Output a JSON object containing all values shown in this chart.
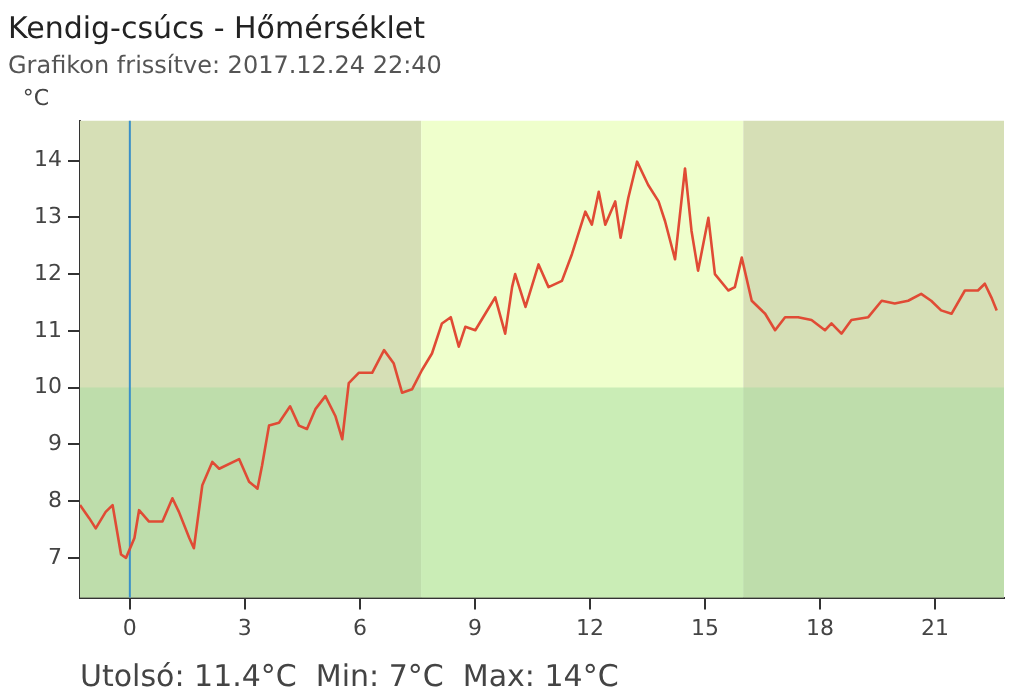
{
  "chart_data": {
    "type": "line",
    "title": "Kendig-csúcs - Hőmérséklet",
    "subtitle": "Grafikon frissítve: 2017.12.24 22:40",
    "ylabel": "°C",
    "annotations": [
      "Utolsó: 11.4°C  Min: 7°C  Max: 14°C"
    ],
    "xlim": [
      -1.3,
      22.8
    ],
    "xticks": [
      0,
      3,
      6,
      9,
      12,
      15,
      18,
      21
    ],
    "ylim": [
      6.3,
      14.7
    ],
    "yticks": [
      7,
      8,
      9,
      10,
      11,
      12,
      13,
      14
    ],
    "grid": false,
    "legend": false,
    "marker": "none",
    "line_style": "solid",
    "bands": [
      {
        "axis": "x",
        "from": -1.3,
        "to": 7.6,
        "color": "#d6dfb6"
      },
      {
        "axis": "x",
        "from": 7.6,
        "to": 16,
        "color": "#efffcc"
      },
      {
        "axis": "x",
        "from": 16,
        "to": 22.8,
        "color": "#d6dfb6"
      },
      {
        "axis": "y",
        "from": 6.3,
        "to": 10,
        "color": "#a6dca0"
      }
    ],
    "ref_lines": [
      {
        "axis": "x",
        "value": 0,
        "color": "#3a8fc8"
      }
    ],
    "series": [
      {
        "color": "#e04b35",
        "x": [
          -1.3,
          -1.06,
          -0.89,
          -0.63,
          -0.45,
          -0.23,
          -0.1,
          0.12,
          0.24,
          0.5,
          0.85,
          1.11,
          1.28,
          1.55,
          1.67,
          1.89,
          2.15,
          2.33,
          2.85,
          3.11,
          3.33,
          3.45,
          3.63,
          3.89,
          4.18,
          4.41,
          4.62,
          4.84,
          5.1,
          5.36,
          5.54,
          5.71,
          5.97,
          6.32,
          6.63,
          6.88,
          7.1,
          7.36,
          7.62,
          7.88,
          8.14,
          8.37,
          8.58,
          8.75,
          9.01,
          9.27,
          9.53,
          9.79,
          9.97,
          10.05,
          10.32,
          10.66,
          10.92,
          11.27,
          11.53,
          11.88,
          12.05,
          12.23,
          12.4,
          12.66,
          12.8,
          13.0,
          13.23,
          13.52,
          13.79,
          13.96,
          14.22,
          14.48,
          14.65,
          14.82,
          15.09,
          15.26,
          15.61,
          15.78,
          15.96,
          16.22,
          16.57,
          16.83,
          17.09,
          17.43,
          17.78,
          18.13,
          18.3,
          18.56,
          18.82,
          19.26,
          19.61,
          19.95,
          20.3,
          20.64,
          20.9,
          21.16,
          21.43,
          21.78,
          22.12,
          22.3,
          22.47,
          22.61
        ],
        "values": [
          7.93,
          7.7,
          7.52,
          7.81,
          7.93,
          7.06,
          7.0,
          7.35,
          7.84,
          7.64,
          7.64,
          8.05,
          7.81,
          7.35,
          7.17,
          8.28,
          8.69,
          8.57,
          8.74,
          8.34,
          8.22,
          8.63,
          9.33,
          9.38,
          9.67,
          9.33,
          9.27,
          9.62,
          9.85,
          9.5,
          9.09,
          10.08,
          10.26,
          10.26,
          10.66,
          10.43,
          9.91,
          9.97,
          10.31,
          10.6,
          11.13,
          11.24,
          10.72,
          11.07,
          11.01,
          11.3,
          11.59,
          10.95,
          11.77,
          12.0,
          11.42,
          12.17,
          11.77,
          11.88,
          12.35,
          13.1,
          12.87,
          13.45,
          12.87,
          13.28,
          12.64,
          13.34,
          13.98,
          13.57,
          13.28,
          12.93,
          12.26,
          13.86,
          12.76,
          12.06,
          12.99,
          12.0,
          11.71,
          11.77,
          12.29,
          11.53,
          11.3,
          11.01,
          11.24,
          11.24,
          11.19,
          11.01,
          11.13,
          10.95,
          11.19,
          11.24,
          11.53,
          11.48,
          11.53,
          11.65,
          11.53,
          11.36,
          11.3,
          11.71,
          11.71,
          11.83,
          11.59,
          11.36
        ]
      }
    ]
  }
}
